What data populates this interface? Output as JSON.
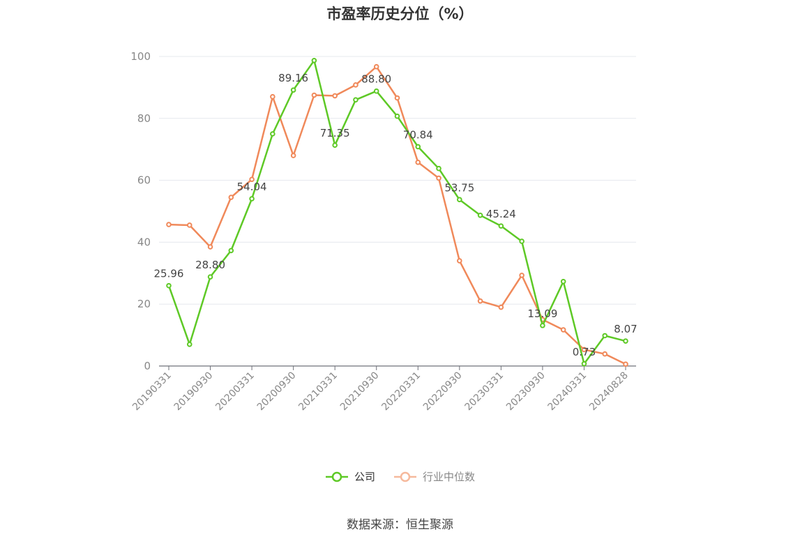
{
  "title": "市盈率历史分位（%）",
  "source": "数据来源：恒生聚源",
  "colors": {
    "company": "#5ec926",
    "industry": "#f0895a",
    "grid": "#e5e8ee",
    "axis": "#888888"
  },
  "chart_data": {
    "type": "line",
    "title": "市盈率历史分位（%）",
    "xlabel": "",
    "ylabel": "",
    "ylim": [
      0,
      100
    ],
    "yticks": [
      0,
      20,
      40,
      60,
      80,
      100
    ],
    "grid": true,
    "legend_position": "bottom-center",
    "x": [
      "20190331",
      "20190630",
      "20190930",
      "20191231",
      "20200331",
      "20200630",
      "20200930",
      "20201231",
      "20210331",
      "20210630",
      "20210930",
      "20211231",
      "20220331",
      "20220630",
      "20220930",
      "20221231",
      "20230331",
      "20230630",
      "20230930",
      "20231231",
      "20240331",
      "20240630",
      "20240828"
    ],
    "x_tick_labels": [
      "20190331",
      "20190930",
      "20200331",
      "20200930",
      "20210331",
      "20210930",
      "20220331",
      "20220930",
      "20230331",
      "20230930",
      "20240331",
      "20240828"
    ],
    "series": [
      {
        "name": "公司",
        "values": [
          25.96,
          7.0,
          28.8,
          37.3,
          54.04,
          75.0,
          89.16,
          98.7,
          71.35,
          86.0,
          88.8,
          80.7,
          70.84,
          63.8,
          53.75,
          48.7,
          45.24,
          40.3,
          13.09,
          27.3,
          0.73,
          9.8,
          8.07
        ],
        "labels": {
          "0": "25.96",
          "2": "28.80",
          "4": "54.04",
          "6": "89.16",
          "8": "71.35",
          "10": "88.80",
          "12": "70.84",
          "14": "53.75",
          "16": "45.24",
          "18": "13.09",
          "20": "0.73",
          "22": "8.07"
        }
      },
      {
        "name": "行业中位数",
        "values": [
          45.7,
          45.5,
          38.5,
          54.5,
          60.3,
          87.0,
          68.0,
          87.5,
          87.3,
          90.8,
          96.7,
          86.6,
          65.8,
          60.7,
          34.0,
          21.0,
          19.0,
          29.3,
          15.0,
          11.7,
          5.3,
          3.9,
          0.6
        ]
      }
    ]
  }
}
